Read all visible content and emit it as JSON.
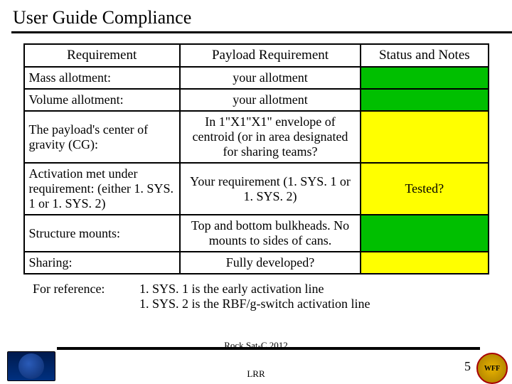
{
  "title": "User Guide Compliance",
  "headers": {
    "req": "Requirement",
    "pay": "Payload Requirement",
    "stat": "Status and Notes"
  },
  "status_colors": {
    "green": "#00bf00",
    "yellow": "#ffff00"
  },
  "rows": [
    {
      "req": "Mass allotment:",
      "pay": "your allotment",
      "stat": "",
      "status_class": "status-green"
    },
    {
      "req": "Volume allotment:",
      "pay": "your allotment",
      "stat": "",
      "status_class": "status-green"
    },
    {
      "req": "The payload's center of gravity (CG):",
      "pay": "In 1\"X1\"X1\" envelope of centroid (or in area designated for sharing teams?",
      "stat": "",
      "status_class": "status-yellow"
    },
    {
      "req": "Activation met under requirement: (either 1. SYS. 1 or 1. SYS. 2)",
      "pay": "Your requirement (1. SYS. 1 or 1. SYS. 2)",
      "stat": "Tested?",
      "status_class": "status-yellow"
    },
    {
      "req": "Structure mounts:",
      "pay": "Top and bottom bulkheads. No mounts to sides of cans.",
      "stat": "",
      "status_class": "status-green"
    },
    {
      "req": "Sharing:",
      "pay": "Fully developed?",
      "stat": "",
      "status_class": "status-yellow"
    }
  ],
  "reference": {
    "label": "For reference:",
    "line1": "1. SYS. 1 is the early activation line",
    "line2": "1. SYS. 2 is the RBF/g-switch activation line"
  },
  "footer": {
    "text1": "Rock.Sat-C 2012",
    "text2": "LRR",
    "page": "5",
    "wff": "WFF"
  }
}
